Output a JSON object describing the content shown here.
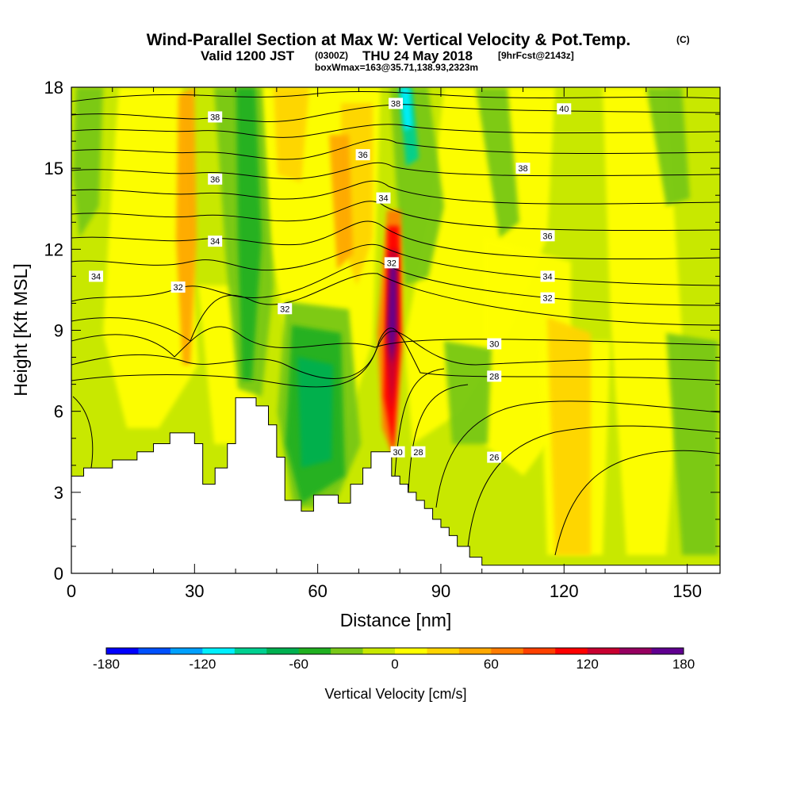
{
  "title": {
    "main": "Wind-Parallel Section at Max W: Vertical Velocity & Pot.Temp.",
    "copyright": "(C)",
    "valid_prefix": "Valid 1200 JST",
    "valid_utc": "(0300Z)",
    "valid_date": "THU 24 May 2018",
    "forecast": "[9hrFcst@2143z]",
    "box_info": "boxWmax=163@35.71,138.93,2323m"
  },
  "chart_data": {
    "type": "heatmap",
    "xlabel": "Distance [nm]",
    "ylabel": "Height [Kft MSL]",
    "xlim": [
      0,
      158
    ],
    "ylim": [
      0,
      18
    ],
    "x_ticks": [
      "0",
      "30",
      "60",
      "90",
      "120",
      "150"
    ],
    "y_ticks": [
      "0",
      "3",
      "6",
      "9",
      "12",
      "15",
      "18"
    ],
    "colorbar": {
      "label": "Vertical Velocity [cm/s]",
      "range": [
        -180,
        180
      ],
      "ticks": [
        "-180",
        "-120",
        "-60",
        "0",
        "60",
        "120",
        "180"
      ],
      "colors": [
        "#0000ff",
        "#0050ff",
        "#00a0ff",
        "#00f0ff",
        "#00d090",
        "#00b050",
        "#20b020",
        "#78c818",
        "#c8e800",
        "#ffff00",
        "#ffd400",
        "#ffa800",
        "#ff7c00",
        "#ff4000",
        "#ff0000",
        "#c80030",
        "#960060",
        "#600090"
      ]
    },
    "terrain_top_kft": [
      [
        0,
        3.6
      ],
      [
        3,
        3.9
      ],
      [
        10,
        4.2
      ],
      [
        16,
        4.5
      ],
      [
        20,
        4.8
      ],
      [
        24,
        5.2
      ],
      [
        30,
        4.8
      ],
      [
        32,
        3.3
      ],
      [
        35,
        3.9
      ],
      [
        38,
        4.8
      ],
      [
        40,
        6.5
      ],
      [
        45,
        6.2
      ],
      [
        48,
        5.5
      ],
      [
        50,
        4.3
      ],
      [
        52,
        2.7
      ],
      [
        56,
        2.3
      ],
      [
        59,
        2.9
      ],
      [
        65,
        2.6
      ],
      [
        68,
        3.3
      ],
      [
        71,
        3.9
      ],
      [
        73,
        4.5
      ],
      [
        78,
        3.6
      ],
      [
        80,
        3.3
      ],
      [
        82,
        3.0
      ],
      [
        84,
        2.7
      ],
      [
        86,
        2.4
      ],
      [
        88,
        2.0
      ],
      [
        90,
        1.7
      ],
      [
        92,
        1.4
      ],
      [
        94,
        1.0
      ],
      [
        97,
        0.6
      ],
      [
        100,
        0.3
      ],
      [
        158,
        0.3
      ]
    ],
    "velocity_features_cm_s": [
      {
        "x": 79,
        "y": 10.5,
        "value": 163
      },
      {
        "x": 29,
        "y": 13,
        "value": 60
      },
      {
        "x": 66,
        "y": 13,
        "value": 50
      },
      {
        "x": 82,
        "y": 17,
        "value": -110
      },
      {
        "x": 58,
        "y": 6,
        "value": -60
      },
      {
        "x": 44,
        "y": 14,
        "value": -55
      },
      {
        "x": 120,
        "y": 5,
        "value": 25
      }
    ],
    "theta_contour_labels": [
      {
        "x": 6,
        "y": 11.0,
        "label": "34"
      },
      {
        "x": 26,
        "y": 10.6,
        "label": "32"
      },
      {
        "x": 35,
        "y": 16.9,
        "label": "38"
      },
      {
        "x": 35,
        "y": 14.6,
        "label": "36"
      },
      {
        "x": 35,
        "y": 12.3,
        "label": "34"
      },
      {
        "x": 52,
        "y": 9.8,
        "label": "32"
      },
      {
        "x": 71,
        "y": 15.5,
        "label": "36"
      },
      {
        "x": 76,
        "y": 13.9,
        "label": "34"
      },
      {
        "x": 78,
        "y": 11.5,
        "label": "32"
      },
      {
        "x": 79,
        "y": 17.4,
        "label": "38"
      },
      {
        "x": 120,
        "y": 17.2,
        "label": "40"
      },
      {
        "x": 110,
        "y": 15.0,
        "label": "38"
      },
      {
        "x": 116,
        "y": 12.5,
        "label": "36"
      },
      {
        "x": 116,
        "y": 11.0,
        "label": "34"
      },
      {
        "x": 116,
        "y": 10.2,
        "label": "32"
      },
      {
        "x": 103,
        "y": 8.5,
        "label": "30"
      },
      {
        "x": 103,
        "y": 7.3,
        "label": "28"
      },
      {
        "x": 103,
        "y": 4.3,
        "label": "26"
      },
      {
        "x": 79.5,
        "y": 4.5,
        "label": "30"
      },
      {
        "x": 84.5,
        "y": 4.5,
        "label": "28"
      }
    ]
  }
}
